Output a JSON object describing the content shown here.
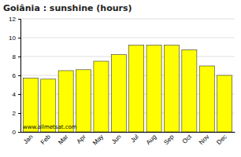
{
  "chart_data": {
    "type": "bar",
    "title": "Goiânia : sunshine (hours)",
    "categories": [
      "Jan",
      "Feb",
      "Mar",
      "Apr",
      "May",
      "Jun",
      "Jul",
      "Aug",
      "Sep",
      "Oct",
      "Nov",
      "Dec"
    ],
    "values": [
      5.7,
      5.6,
      6.5,
      6.6,
      7.5,
      8.2,
      9.2,
      9.2,
      9.2,
      8.7,
      7.0,
      6.0
    ],
    "color": "#ffff00",
    "ylim": [
      0,
      12
    ],
    "yticks": [
      0,
      2,
      4,
      6,
      8,
      10,
      12
    ],
    "grid": true,
    "annotations": [
      "www.allmetsat.com"
    ]
  }
}
